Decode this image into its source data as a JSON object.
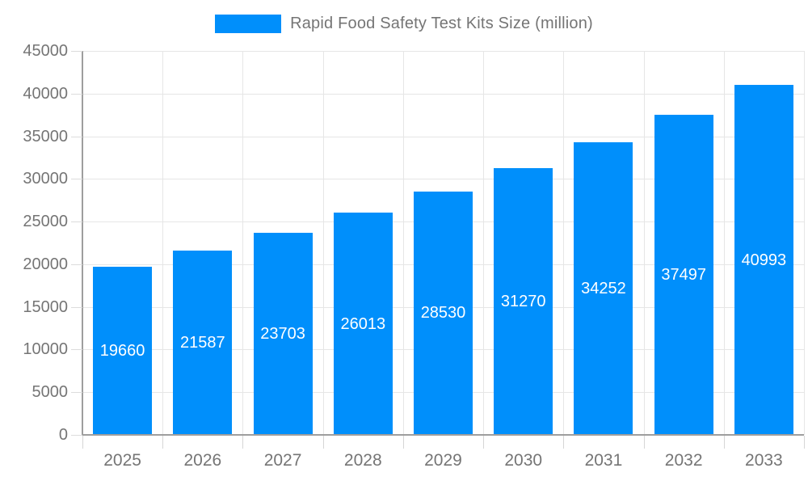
{
  "chart_data": {
    "type": "bar",
    "title": "Rapid Food Safety Test Kits Size (million)",
    "legend_position": "top",
    "categories": [
      "2025",
      "2026",
      "2027",
      "2028",
      "2029",
      "2030",
      "2031",
      "2032",
      "2033"
    ],
    "values": [
      19660,
      21587,
      23703,
      26013,
      28530,
      31270,
      34252,
      37497,
      40993
    ],
    "value_labels": [
      "19660",
      "21587",
      "23703",
      "26013",
      "28530",
      "31270",
      "34252",
      "37497",
      "40993"
    ],
    "xlabel": "",
    "ylabel": "",
    "ylim": [
      0,
      45000
    ],
    "y_tick_step": 5000,
    "y_ticks": [
      "0",
      "5000",
      "10000",
      "15000",
      "20000",
      "25000",
      "30000",
      "35000",
      "40000",
      "45000"
    ],
    "grid": "both",
    "colors": {
      "bar": "#008FFB",
      "grid": "#e6e6e6",
      "axis": "#9e9e9e",
      "text": "#757575",
      "bar_label": "#ffffff",
      "background": "#ffffff"
    }
  }
}
